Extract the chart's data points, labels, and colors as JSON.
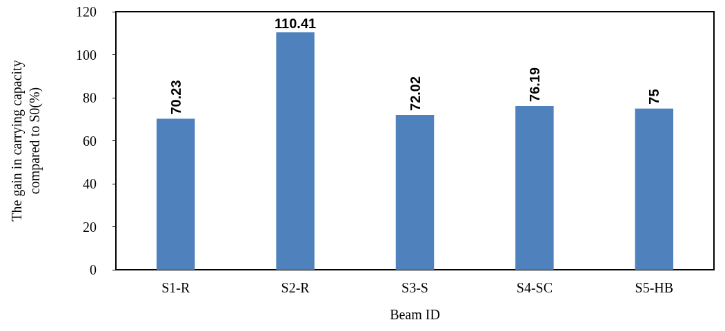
{
  "chart_data": {
    "type": "bar",
    "xlabel": "Beam ID",
    "ylabel": "The gain in carrying capacity\ncompared to S0(%)",
    "categories": [
      "S1-R",
      "S2-R",
      "S3-S",
      "S4-SC",
      "S5-HB"
    ],
    "values": [
      70.23,
      110.41,
      72.02,
      76.19,
      75
    ],
    "color": "#4f81bd",
    "ylim": [
      0,
      120
    ],
    "yticks": [
      0,
      20,
      40,
      60,
      80,
      100,
      120
    ],
    "grid": false,
    "data_labels": true
  }
}
